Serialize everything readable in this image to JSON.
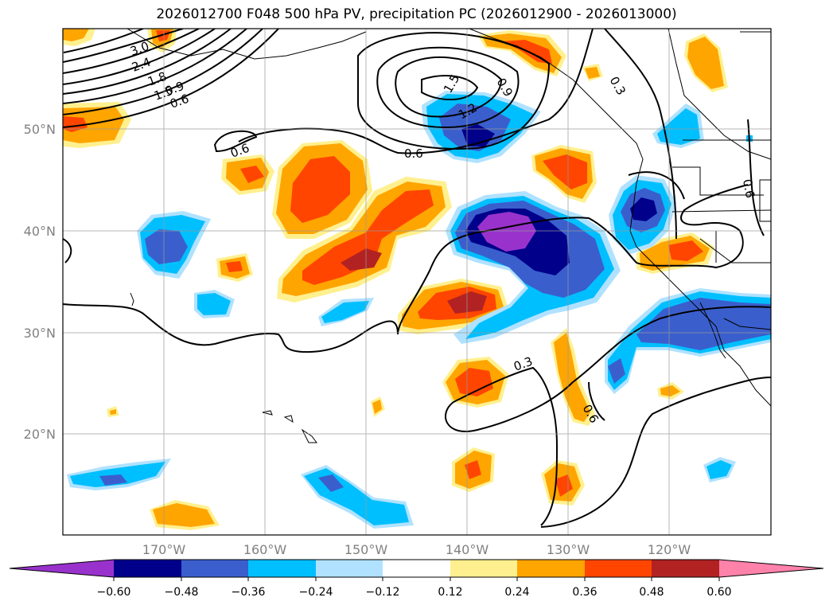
{
  "title": "2026012700 F048 500 hPa PV, precipitation PC (2026012900 - 2026013000)",
  "lat_labels": [
    "50°N",
    "40°N",
    "30°N",
    "20°N"
  ],
  "lon_labels": [
    "170°W",
    "160°W",
    "150°W",
    "140°W",
    "130°W",
    "120°W"
  ],
  "colorbar": {
    "ticks": [
      "−0.60",
      "−0.48",
      "−0.36",
      "−0.24",
      "−0.12",
      "0.12",
      "0.24",
      "0.36",
      "0.48",
      "0.60"
    ],
    "colors": [
      "#9932cc",
      "#00008b",
      "#3a5fcd",
      "#00bfff",
      "#b0e2ff",
      "#ffffff",
      "#fff08f",
      "#ffa500",
      "#ff4500",
      "#b22222",
      "#ff82ab"
    ]
  },
  "contour_labels": [
    "3.0",
    "2.4",
    "1.8",
    "1.5",
    "0.9",
    "0.6",
    "0.6",
    "1.5",
    "1.2",
    "0.9",
    "0.6",
    "0.3",
    "0.3",
    "0.6",
    "0.6"
  ],
  "colors": {
    "neg_strong": "#9932cc",
    "neg_dark": "#00008b",
    "neg_mid": "#3a5fcd",
    "neg_light": "#00bfff",
    "neg_pale": "#b0e2ff",
    "pos_pale": "#fff08f",
    "pos_light": "#ffa500",
    "pos_mid": "#ff4500",
    "pos_dark": "#b22222",
    "pos_strong": "#ff82ab"
  }
}
